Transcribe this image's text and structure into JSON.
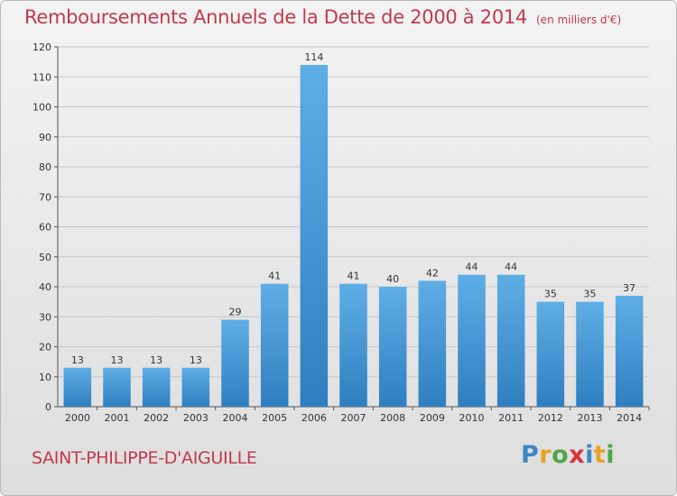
{
  "header": {
    "title": "Remboursements Annuels de la Dette de 2000 à 2014",
    "unit": "(en milliers d'€)"
  },
  "footer": {
    "commune": "SAINT-PHILIPPE-D'AIGUILLE",
    "logo_text": "Proxiti"
  },
  "colors": {
    "title": "#c23a4c",
    "bar_top": "#5faee6",
    "bar_bottom": "#2f7fc0",
    "grid": "#c8c8c8"
  },
  "chart_data": {
    "type": "bar",
    "title": "Remboursements Annuels de la Dette de 2000 à 2014",
    "xlabel": "",
    "ylabel": "",
    "ylim": [
      0,
      120
    ],
    "yticks": [
      0,
      10,
      20,
      30,
      40,
      50,
      60,
      70,
      80,
      90,
      100,
      110,
      120
    ],
    "grid": true,
    "categories": [
      "2000",
      "2001",
      "2002",
      "2003",
      "2004",
      "2005",
      "2006",
      "2007",
      "2008",
      "2009",
      "2010",
      "2011",
      "2012",
      "2013",
      "2014"
    ],
    "values": [
      13,
      13,
      13,
      13,
      29,
      41,
      114,
      41,
      40,
      42,
      44,
      44,
      35,
      35,
      37
    ]
  }
}
